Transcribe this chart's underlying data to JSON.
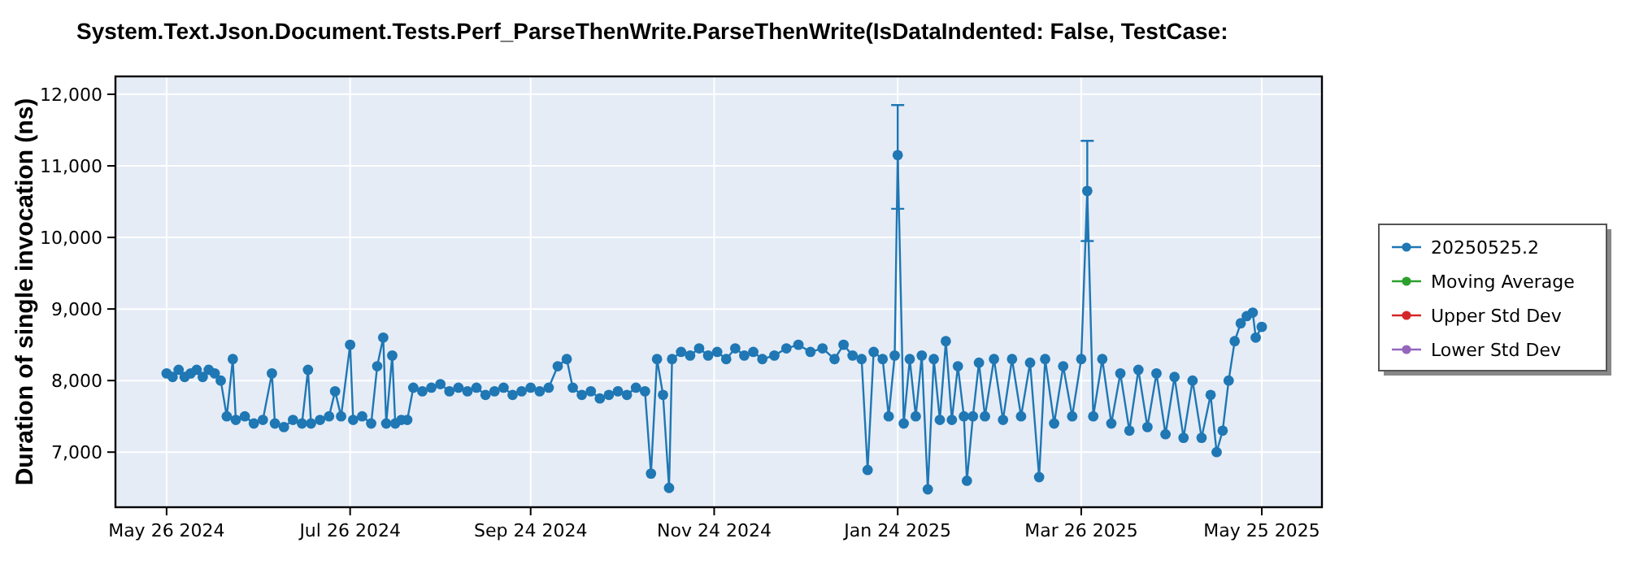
{
  "chart_data": {
    "type": "line",
    "title": "System.Text.Json.Document.Tests.Perf_ParseThenWrite.ParseThenWrite(IsDataIndented: False, TestCase:",
    "ylabel": "Duration of single invocation (ns)",
    "xlim": [
      "2024-05-09",
      "2025-06-14"
    ],
    "xticks": [
      {
        "value": "2024-05-26",
        "label": "May 26 2024"
      },
      {
        "value": "2024-07-26",
        "label": "Jul 26 2024"
      },
      {
        "value": "2024-09-24",
        "label": "Sep 24 2024"
      },
      {
        "value": "2024-11-24",
        "label": "Nov 24 2024"
      },
      {
        "value": "2025-01-24",
        "label": "Jan 24 2025"
      },
      {
        "value": "2025-03-26",
        "label": "Mar 26 2025"
      },
      {
        "value": "2025-05-25",
        "label": "May 25 2025"
      }
    ],
    "ylim": [
      6230,
      12250
    ],
    "yticks": [
      {
        "value": 7000,
        "label": "7,000"
      },
      {
        "value": 8000,
        "label": "8,000"
      },
      {
        "value": 9000,
        "label": "9,000"
      },
      {
        "value": 10000,
        "label": "10,000"
      },
      {
        "value": 11000,
        "label": "11,000"
      },
      {
        "value": 12000,
        "label": "12,000"
      }
    ],
    "grid": true,
    "legend": "right",
    "marker": "circle",
    "line_style": "solid",
    "series": [
      {
        "name": "20250525.2",
        "color": "#1f77b4",
        "x": [
          "2024-05-26",
          "2024-05-28",
          "2024-05-30",
          "2024-06-01",
          "2024-06-03",
          "2024-06-05",
          "2024-06-07",
          "2024-06-09",
          "2024-06-11",
          "2024-06-13",
          "2024-06-15",
          "2024-06-17",
          "2024-06-18",
          "2024-06-21",
          "2024-06-24",
          "2024-06-27",
          "2024-06-30",
          "2024-07-01",
          "2024-07-04",
          "2024-07-07",
          "2024-07-10",
          "2024-07-12",
          "2024-07-13",
          "2024-07-16",
          "2024-07-19",
          "2024-07-21",
          "2024-07-23",
          "2024-07-26",
          "2024-07-27",
          "2024-07-30",
          "2024-08-02",
          "2024-08-04",
          "2024-08-06",
          "2024-08-07",
          "2024-08-09",
          "2024-08-10",
          "2024-08-12",
          "2024-08-14",
          "2024-08-16",
          "2024-08-19",
          "2024-08-22",
          "2024-08-25",
          "2024-08-28",
          "2024-08-31",
          "2024-09-03",
          "2024-09-06",
          "2024-09-09",
          "2024-09-12",
          "2024-09-15",
          "2024-09-18",
          "2024-09-21",
          "2024-09-24",
          "2024-09-27",
          "2024-09-30",
          "2024-10-03",
          "2024-10-06",
          "2024-10-08",
          "2024-10-11",
          "2024-10-14",
          "2024-10-17",
          "2024-10-20",
          "2024-10-23",
          "2024-10-26",
          "2024-10-29",
          "2024-11-01",
          "2024-11-03",
          "2024-11-05",
          "2024-11-07",
          "2024-11-09",
          "2024-11-10",
          "2024-11-13",
          "2024-11-16",
          "2024-11-19",
          "2024-11-22",
          "2024-11-25",
          "2024-11-28",
          "2024-12-01",
          "2024-12-04",
          "2024-12-07",
          "2024-12-10",
          "2024-12-14",
          "2024-12-18",
          "2024-12-22",
          "2024-12-26",
          "2024-12-30",
          "2025-01-03",
          "2025-01-06",
          "2025-01-09",
          "2025-01-12",
          "2025-01-14",
          "2025-01-16",
          "2025-01-19",
          "2025-01-21",
          "2025-01-23",
          "2025-01-24",
          "2025-01-26",
          "2025-01-28",
          "2025-01-30",
          "2025-02-01",
          "2025-02-03",
          "2025-02-05",
          "2025-02-07",
          "2025-02-09",
          "2025-02-11",
          "2025-02-13",
          "2025-02-15",
          "2025-02-16",
          "2025-02-18",
          "2025-02-20",
          "2025-02-22",
          "2025-02-25",
          "2025-02-28",
          "2025-03-03",
          "2025-03-06",
          "2025-03-09",
          "2025-03-12",
          "2025-03-14",
          "2025-03-17",
          "2025-03-20",
          "2025-03-23",
          "2025-03-26",
          "2025-03-28",
          "2025-03-30",
          "2025-04-02",
          "2025-04-05",
          "2025-04-08",
          "2025-04-11",
          "2025-04-14",
          "2025-04-17",
          "2025-04-20",
          "2025-04-23",
          "2025-04-26",
          "2025-04-29",
          "2025-05-02",
          "2025-05-05",
          "2025-05-08",
          "2025-05-10",
          "2025-05-12",
          "2025-05-14",
          "2025-05-16",
          "2025-05-18",
          "2025-05-20",
          "2025-05-22",
          "2025-05-23",
          "2025-05-25"
        ],
        "values": [
          8100,
          8050,
          8150,
          8050,
          8100,
          8150,
          8050,
          8150,
          8100,
          8000,
          7500,
          8300,
          7450,
          7500,
          7400,
          7450,
          8100,
          7400,
          7350,
          7450,
          7400,
          8150,
          7400,
          7450,
          7500,
          7850,
          7500,
          8500,
          7450,
          7500,
          7400,
          8200,
          8600,
          7400,
          8350,
          7400,
          7450,
          7450,
          7900,
          7850,
          7900,
          7950,
          7850,
          7900,
          7850,
          7900,
          7800,
          7850,
          7900,
          7800,
          7850,
          7900,
          7850,
          7900,
          8200,
          8300,
          7900,
          7800,
          7850,
          7750,
          7800,
          7850,
          7800,
          7900,
          7850,
          6700,
          8300,
          7800,
          6500,
          8300,
          8400,
          8350,
          8450,
          8350,
          8400,
          8300,
          8450,
          8350,
          8400,
          8300,
          8350,
          8450,
          8500,
          8400,
          8450,
          8300,
          8500,
          8350,
          8300,
          6750,
          8400,
          8300,
          7500,
          8350,
          11150,
          7400,
          8300,
          7500,
          8350,
          6480,
          8300,
          7450,
          8550,
          7450,
          8200,
          7500,
          6600,
          7500,
          8250,
          7500,
          8300,
          7450,
          8300,
          7500,
          8250,
          6650,
          8300,
          7400,
          8200,
          7500,
          8300,
          10650,
          7500,
          8300,
          7400,
          8100,
          7300,
          8150,
          7350,
          8100,
          7250,
          8050,
          7200,
          8000,
          7200,
          7800,
          7000,
          7300,
          8000,
          8550,
          8800,
          8900,
          8950,
          8600,
          8750
        ],
        "errors": [
          null,
          null,
          null,
          null,
          null,
          null,
          null,
          null,
          null,
          null,
          null,
          null,
          null,
          null,
          null,
          null,
          null,
          null,
          null,
          null,
          null,
          null,
          null,
          null,
          null,
          null,
          null,
          null,
          null,
          null,
          null,
          null,
          null,
          null,
          null,
          null,
          null,
          null,
          null,
          null,
          null,
          null,
          null,
          null,
          null,
          null,
          null,
          null,
          null,
          null,
          null,
          null,
          null,
          null,
          null,
          null,
          null,
          null,
          null,
          null,
          null,
          null,
          null,
          null,
          null,
          null,
          null,
          null,
          null,
          null,
          null,
          null,
          null,
          null,
          null,
          null,
          null,
          null,
          null,
          null,
          null,
          null,
          null,
          null,
          null,
          null,
          null,
          null,
          null,
          null,
          null,
          null,
          null,
          null,
          [
            10400,
            11850
          ],
          null,
          null,
          null,
          null,
          null,
          null,
          null,
          null,
          null,
          null,
          null,
          null,
          null,
          null,
          null,
          null,
          null,
          null,
          null,
          null,
          null,
          null,
          null,
          null,
          null,
          null,
          [
            9950,
            11350
          ],
          null,
          null,
          null,
          null,
          null,
          null,
          null,
          null,
          null,
          null,
          null,
          null,
          null,
          null,
          null,
          null,
          null,
          null,
          null,
          null,
          null,
          null,
          null
        ]
      },
      {
        "name": "Moving Average",
        "color": "#2ca02c"
      },
      {
        "name": "Upper Std Dev",
        "color": "#d62728"
      },
      {
        "name": "Lower Std Dev",
        "color": "#9467bd"
      }
    ]
  }
}
